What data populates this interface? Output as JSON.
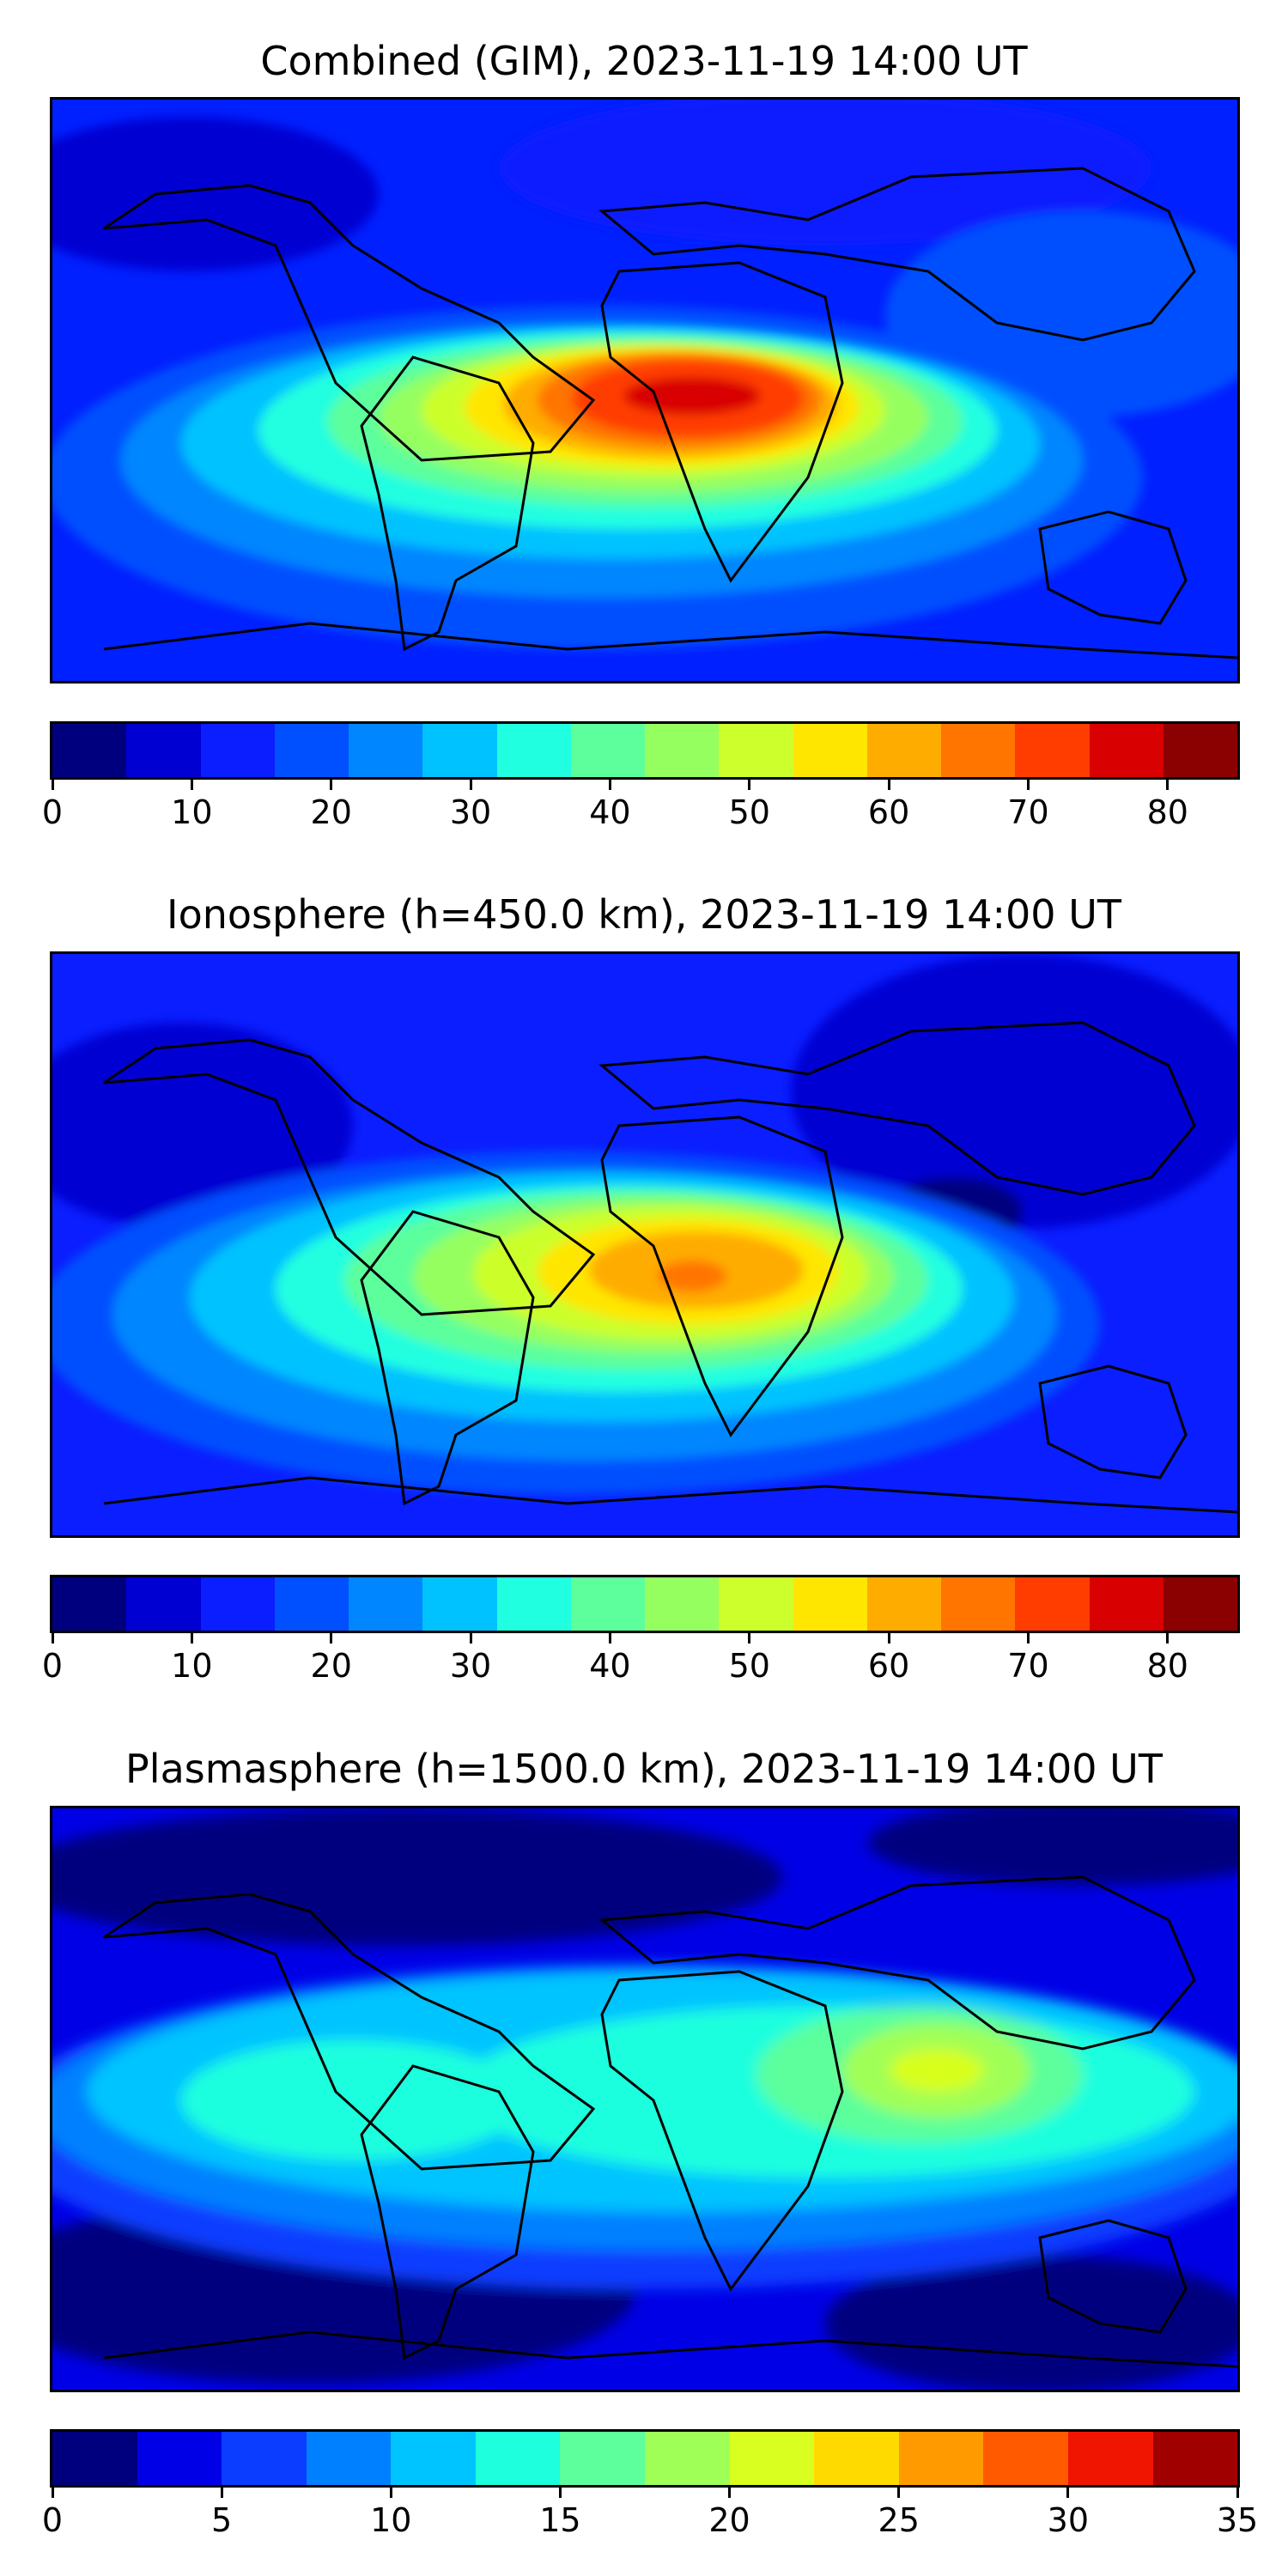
{
  "panels": [
    {
      "title": "Combined (GIM), 2023-11-19 14:00 UT",
      "colorbar": {
        "colors": [
          "#00007f",
          "#0000d2",
          "#0a1eff",
          "#0050ff",
          "#0086ff",
          "#00c2ff",
          "#20ffe0",
          "#5cff9c",
          "#96ff60",
          "#ccff2b",
          "#ffe600",
          "#ffac00",
          "#ff7500",
          "#ff3d00",
          "#d80000",
          "#8b0000"
        ],
        "min": 0,
        "max": 85,
        "tick_labels": [
          "0",
          "10",
          "20",
          "30",
          "40",
          "50",
          "60",
          "70",
          "80"
        ],
        "tick_values": [
          0,
          10,
          20,
          30,
          40,
          50,
          60,
          70,
          80
        ]
      }
    },
    {
      "title": "Ionosphere  (h=450.0 km), 2023-11-19 14:00 UT",
      "colorbar": {
        "colors": [
          "#00007f",
          "#0000d2",
          "#0a1eff",
          "#0050ff",
          "#0086ff",
          "#00c2ff",
          "#20ffe0",
          "#5cff9c",
          "#96ff60",
          "#ccff2b",
          "#ffe600",
          "#ffac00",
          "#ff7500",
          "#ff3d00",
          "#d80000",
          "#8b0000"
        ],
        "min": 0,
        "max": 85,
        "tick_labels": [
          "0",
          "10",
          "20",
          "30",
          "40",
          "50",
          "60",
          "70",
          "80"
        ],
        "tick_values": [
          0,
          10,
          20,
          30,
          40,
          50,
          60,
          70,
          80
        ]
      }
    },
    {
      "title": "Plasmasphere (h=1500.0 km), 2023-11-19 14:00 UT",
      "colorbar": {
        "colors": [
          "#00007f",
          "#0000e6",
          "#0a3dff",
          "#0080ff",
          "#00c4ff",
          "#1effde",
          "#5cff9c",
          "#a0ff56",
          "#d8ff1f",
          "#ffda00",
          "#ff9a00",
          "#ff5a00",
          "#f01500",
          "#a00000"
        ],
        "min": 0,
        "max": 35,
        "tick_labels": [
          "0",
          "5",
          "10",
          "15",
          "20",
          "25",
          "30",
          "35"
        ],
        "tick_values": [
          0,
          5,
          10,
          15,
          20,
          25,
          30,
          35
        ]
      }
    }
  ]
}
